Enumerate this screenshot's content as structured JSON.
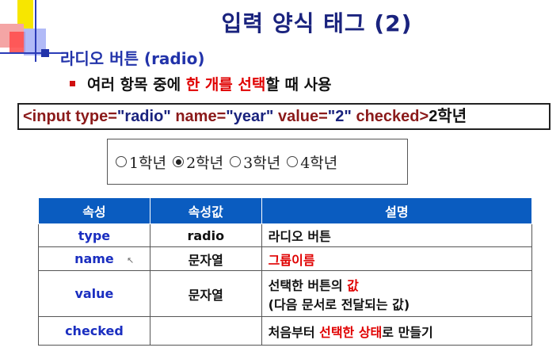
{
  "title": "입력 양식 태그 (2)",
  "heading": "라디오 버튼 (radio)",
  "subheading": {
    "pre": "여러 항목 중에 ",
    "hl": "한 개를 선택",
    "post": "할 때 사용"
  },
  "code": {
    "tag": "<input ",
    "a1": "type=",
    "v1": "\"radio\" ",
    "a2": "name=",
    "v2": "\"year\" ",
    "a3": "value=",
    "v3": "\"2\"  ",
    "a4": "checked>",
    "text": "2학년"
  },
  "demo": [
    {
      "label": "1학년",
      "checked": false
    },
    {
      "label": "2학년",
      "checked": true
    },
    {
      "label": "3학년",
      "checked": false
    },
    {
      "label": "4학년",
      "checked": false
    }
  ],
  "table": {
    "headers": [
      "속성",
      "속성값",
      "설명"
    ],
    "rows": [
      {
        "attr": "type",
        "value": "radio",
        "desc_pre": "라디오 버튼",
        "desc_hl": "",
        "desc_post": "",
        "desc_line2": ""
      },
      {
        "attr": "name",
        "value": "문자열",
        "desc_pre": "",
        "desc_hl": "그룹이름",
        "desc_post": "",
        "desc_line2": ""
      },
      {
        "attr": "value",
        "value": "문자열",
        "desc_pre": "선택한 버튼의 ",
        "desc_hl": "값",
        "desc_post": "",
        "desc_line2": "(다음 문서로 전달되는 값)"
      },
      {
        "attr": "checked",
        "value": "",
        "desc_pre": "처음부터 ",
        "desc_hl": "선택한 상태",
        "desc_post": "로 만들기",
        "desc_line2": ""
      }
    ]
  },
  "colors": {
    "header_bg": "#0a5cc0",
    "title": "#1a237e",
    "highlight": "#e00000"
  }
}
